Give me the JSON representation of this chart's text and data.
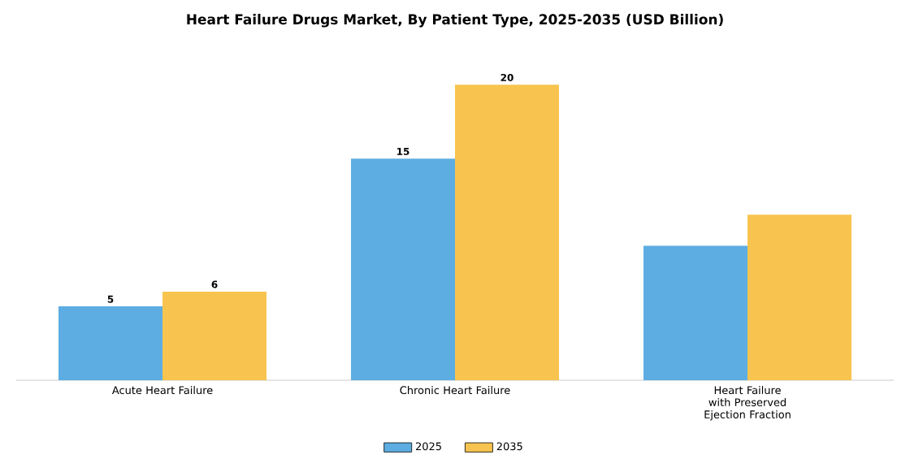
{
  "chart_data": {
    "type": "bar",
    "title": "Heart Failure Drugs Market, By Patient Type, 2025-2035 (USD Billion)",
    "categories": [
      "Acute Heart Failure",
      "Chronic Heart Failure",
      "Heart Failure with Preserved Ejection Fraction"
    ],
    "series": [
      {
        "name": "2025",
        "color": "#5dade2",
        "values": [
          5,
          15,
          9.1
        ],
        "value_labels": [
          "5",
          "15",
          null
        ]
      },
      {
        "name": "2035",
        "color": "#f8c44f",
        "values": [
          6,
          20,
          11.2
        ],
        "value_labels": [
          "6",
          "20",
          null
        ]
      }
    ],
    "legend": "bottom",
    "grid": false
  }
}
